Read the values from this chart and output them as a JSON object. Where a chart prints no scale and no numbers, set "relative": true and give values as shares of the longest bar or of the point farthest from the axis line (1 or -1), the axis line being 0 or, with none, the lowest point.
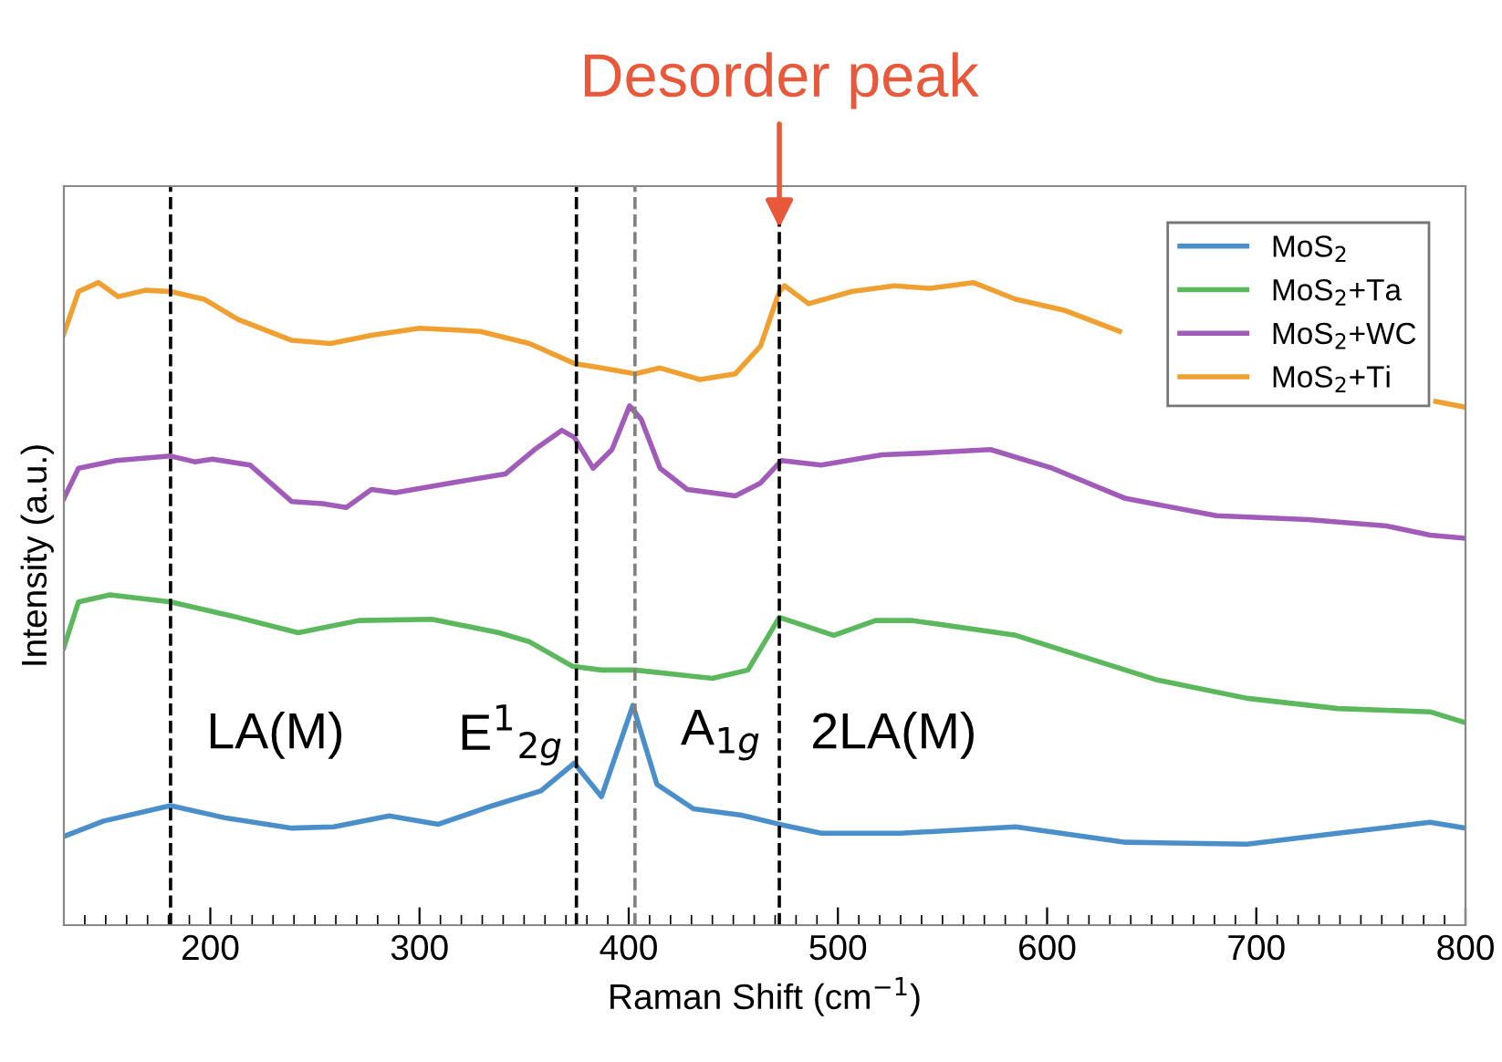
{
  "chart_data": {
    "type": "line",
    "relative": true,
    "xlabel": "Raman Shift (cm$^{−1}$)",
    "ylabel": "Intensity (a.u.)",
    "xlim": [
      130,
      800
    ],
    "xticks": [
      200,
      300,
      400,
      500,
      600,
      700,
      800
    ],
    "tick_labels": "x",
    "legend": "top right",
    "grid": false,
    "marker": "none",
    "line_style": "solid",
    "series": [
      {
        "name": "MoS$_{2}$",
        "color": "#4a8fc9",
        "x": [
          130,
          149,
          181,
          207,
          239,
          259,
          285.5,
          309,
          335,
          358,
          374,
          387,
          402,
          413.5,
          431,
          454,
          472,
          492,
          530,
          585,
          637.5,
          695.6,
          739,
          783,
          800
        ],
        "values": [
          0.138,
          0.162,
          0.186,
          0.167,
          0.151,
          0.153,
          0.17,
          0.157,
          0.186,
          0.209,
          0.252,
          0.2,
          0.342,
          0.219,
          0.181,
          0.171,
          0.157,
          0.143,
          0.143,
          0.153,
          0.129,
          0.126,
          0.143,
          0.16,
          0.151
        ]
      },
      {
        "name": "MoS$_{2}$+Ta",
        "color": "#5cb85c",
        "x": [
          130,
          137,
          152,
          181,
          213,
          242,
          271,
          306,
          338,
          352.5,
          373,
          387,
          403,
          440,
          457,
          472,
          498,
          518,
          535.7,
          585,
          617,
          652,
          695.6,
          739,
          783,
          800
        ],
        "values": [
          0.432,
          0.503,
          0.514,
          0.503,
          0.479,
          0.455,
          0.474,
          0.476,
          0.455,
          0.441,
          0.403,
          0.397,
          0.397,
          0.384,
          0.397,
          0.479,
          0.451,
          0.474,
          0.474,
          0.451,
          0.418,
          0.382,
          0.353,
          0.337,
          0.332,
          0.315
        ]
      },
      {
        "name": "MoS$_{2}$+WC",
        "color": "#a05cb8",
        "x": [
          130,
          137,
          155,
          181,
          192.5,
          201,
          219,
          239,
          253.6,
          265,
          277,
          288.5,
          314.7,
          341,
          355,
          368,
          374,
          383,
          392,
          400.4,
          406,
          415,
          428,
          451,
          463,
          473,
          492,
          521,
          544,
          573,
          602.5,
          637.5,
          681,
          724.7,
          762.5,
          783,
          800
        ],
        "values": [
          0.664,
          0.711,
          0.723,
          0.73,
          0.721,
          0.725,
          0.716,
          0.659,
          0.656,
          0.65,
          0.678,
          0.673,
          0.688,
          0.702,
          0.74,
          0.77,
          0.759,
          0.711,
          0.74,
          0.808,
          0.787,
          0.711,
          0.678,
          0.668,
          0.688,
          0.723,
          0.716,
          0.732,
          0.735,
          0.74,
          0.711,
          0.664,
          0.637,
          0.631,
          0.621,
          0.607,
          0.602
        ]
      },
      {
        "name": "MoS$_{2}$+Ti",
        "color": "#f0a030",
        "x": [
          130,
          137,
          146.6,
          156,
          169,
          181,
          197,
          213,
          239,
          257.5,
          277,
          300,
          329,
          352.5,
          374,
          387,
          403,
          415,
          434,
          451,
          463,
          472,
          474.5,
          486,
          506.6,
          527,
          544,
          564.7,
          585,
          608,
          634.6,
          700,
          785.8,
          800
        ],
        "values": [
          0.92,
          0.986,
          1.0,
          0.978,
          0.988,
          0.986,
          0.974,
          0.943,
          0.91,
          0.905,
          0.918,
          0.929,
          0.924,
          0.905,
          0.874,
          0.867,
          0.858,
          0.867,
          0.849,
          0.858,
          0.901,
          0.986,
          0.995,
          0.967,
          0.986,
          0.995,
          0.991,
          1.0,
          0.974,
          0.957,
          0.924,
          null,
          0.815,
          0.806
        ]
      }
    ],
    "ref_lines": [
      {
        "axis": "x",
        "value": 181,
        "color": "#000000",
        "line_style": "dashed"
      },
      {
        "axis": "x",
        "value": 375,
        "color": "#000000",
        "line_style": "dashed"
      },
      {
        "axis": "x",
        "value": 403,
        "color": "#808080",
        "line_style": "dashed"
      },
      {
        "axis": "x",
        "value": 472,
        "color": "#000000",
        "line_style": "dashed"
      }
    ],
    "annotations": [
      "LA(M)",
      "E$^{1}$$_{2g}$",
      "A$_{1g}$",
      "2LA(M)",
      {
        "text": "Desorder peak",
        "x": 472,
        "y": 1.085
      }
    ]
  }
}
